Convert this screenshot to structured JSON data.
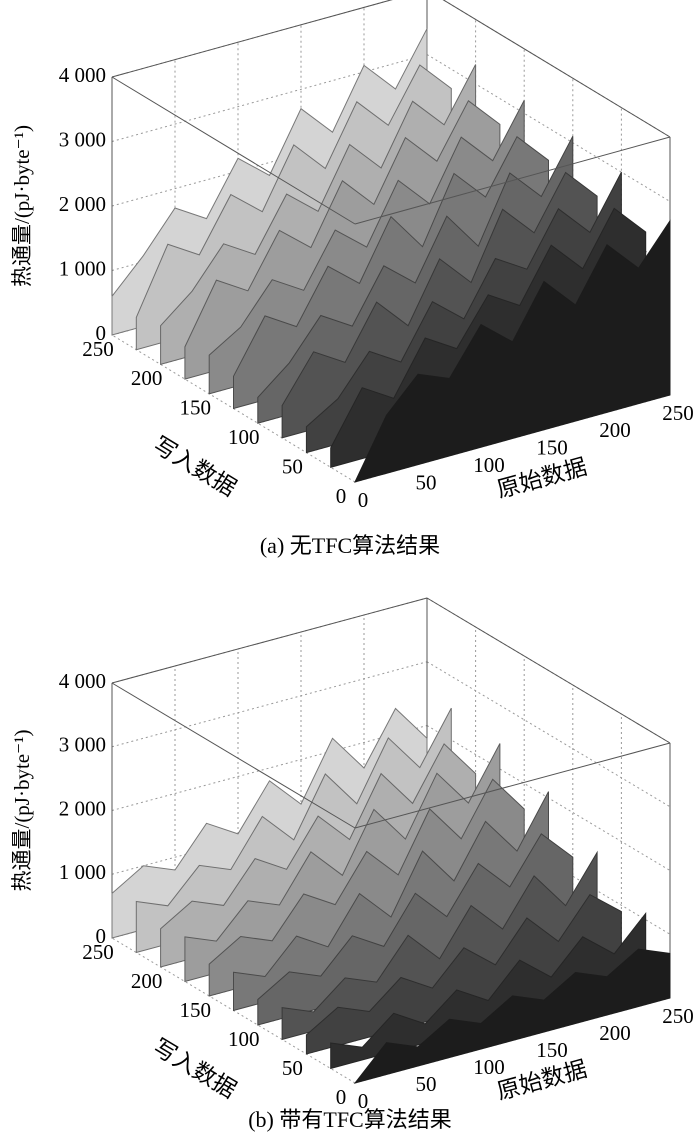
{
  "chart_data": [
    {
      "type": "surface3d",
      "title": "(a) 无TFC算法结果",
      "xlabel": "原始数据",
      "ylabel": "写入数据",
      "zlabel": "热通量/(pJ·byte⁻¹)",
      "x": [
        0,
        25,
        50,
        75,
        100,
        125,
        150,
        175,
        200,
        225,
        250
      ],
      "y": [
        0,
        25,
        50,
        75,
        100,
        125,
        150,
        175,
        200,
        225,
        250
      ],
      "z": [
        [
          0,
          900,
          1400,
          1200,
          1900,
          1500,
          2300,
          1800,
          2600,
          2100,
          2700
        ],
        [
          300,
          1100,
          800,
          1600,
          1300,
          2000,
          1700,
          2500,
          2000,
          2800,
          2300
        ],
        [
          400,
          700,
          1300,
          1000,
          1800,
          1400,
          2200,
          1900,
          2700,
          2200,
          3000
        ],
        [
          500,
          1200,
          900,
          1700,
          1200,
          2100,
          1600,
          2600,
          2100,
          2900,
          2400
        ],
        [
          400,
          800,
          1400,
          1100,
          1900,
          1500,
          2400,
          1800,
          2800,
          2300,
          3100
        ],
        [
          500,
          1300,
          1000,
          1800,
          1400,
          2300,
          1700,
          2700,
          2200,
          3000,
          2500
        ],
        [
          600,
          900,
          1500,
          1200,
          2000,
          1600,
          2500,
          2000,
          2900,
          2400,
          3200
        ],
        [
          500,
          1400,
          1100,
          1900,
          1500,
          2400,
          1900,
          2800,
          2300,
          3100,
          2600
        ],
        [
          600,
          1000,
          1600,
          1300,
          2100,
          1700,
          2600,
          2100,
          3000,
          2500,
          3300
        ],
        [
          500,
          1500,
          1200,
          2000,
          1600,
          2500,
          2000,
          2900,
          2400,
          3200,
          2700
        ],
        [
          600,
          1100,
          1700,
          1400,
          2200,
          1800,
          2700,
          2200,
          3100,
          2600,
          3400
        ]
      ],
      "xlim": [
        0,
        250
      ],
      "ylim": [
        0,
        250
      ],
      "zlim": [
        0,
        4000
      ],
      "xticks": [
        0,
        50,
        100,
        150,
        200,
        250
      ],
      "yticks": [
        0,
        50,
        100,
        150,
        200,
        250
      ],
      "zticks": [
        0,
        {
          "value": 1000,
          "label": "1 000"
        },
        {
          "value": 2000,
          "label": "2 000"
        },
        {
          "value": 3000,
          "label": "3 000"
        },
        {
          "value": 4000,
          "label": "4 000"
        }
      ],
      "grid": true,
      "colors": [
        "#1c1c1c",
        "#d4d4d4"
      ]
    },
    {
      "type": "surface3d",
      "title": "(b) 带有TFC算法结果",
      "xlabel": "原始数据",
      "ylabel": "写入数据",
      "zlabel": "热通量/(pJ·byte⁻¹)",
      "x": [
        0,
        25,
        50,
        75,
        100,
        125,
        150,
        175,
        200,
        225,
        250
      ],
      "y": [
        0,
        25,
        50,
        75,
        100,
        125,
        150,
        175,
        200,
        225,
        250
      ],
      "z": [
        [
          0,
          500,
          300,
          600,
          400,
          700,
          500,
          800,
          600,
          900,
          700
        ],
        [
          400,
          200,
          600,
          300,
          700,
          400,
          900,
          500,
          1000,
          600,
          1100
        ],
        [
          300,
          600,
          400,
          800,
          500,
          1000,
          600,
          1200,
          700,
          1300,
          900
        ],
        [
          500,
          300,
          700,
          500,
          1100,
          600,
          1300,
          800,
          1500,
          900,
          1600
        ],
        [
          400,
          700,
          500,
          1000,
          700,
          1400,
          900,
          1600,
          1100,
          1800,
          1300
        ],
        [
          600,
          400,
          900,
          600,
          1300,
          800,
          1700,
          1100,
          1900,
          1300,
          2100
        ],
        [
          500,
          800,
          600,
          1200,
          900,
          1600,
          1100,
          2000,
          1400,
          2200,
          1600
        ],
        [
          700,
          500,
          1000,
          800,
          1500,
          1000,
          1900,
          1300,
          2200,
          1600,
          2400
        ],
        [
          600,
          900,
          700,
          1300,
          1000,
          1700,
          1200,
          2100,
          1500,
          2300,
          1700
        ],
        [
          800,
          600,
          1100,
          900,
          1600,
          1100,
          2000,
          1400,
          2300,
          1700,
          2500
        ],
        [
          700,
          1000,
          800,
          1400,
          1100,
          1800,
          1300,
          2200,
          1600,
          2400,
          1800
        ]
      ],
      "xlim": [
        0,
        250
      ],
      "ylim": [
        0,
        250
      ],
      "zlim": [
        0,
        4000
      ],
      "xticks": [
        0,
        50,
        100,
        150,
        200,
        250
      ],
      "yticks": [
        0,
        50,
        100,
        150,
        200,
        250
      ],
      "zticks": [
        0,
        {
          "value": 1000,
          "label": "1 000"
        },
        {
          "value": 2000,
          "label": "2 000"
        },
        {
          "value": 3000,
          "label": "3 000"
        },
        {
          "value": 4000,
          "label": "4 000"
        }
      ],
      "grid": true,
      "colors": [
        "#1c1c1c",
        "#d4d4d4"
      ]
    }
  ]
}
